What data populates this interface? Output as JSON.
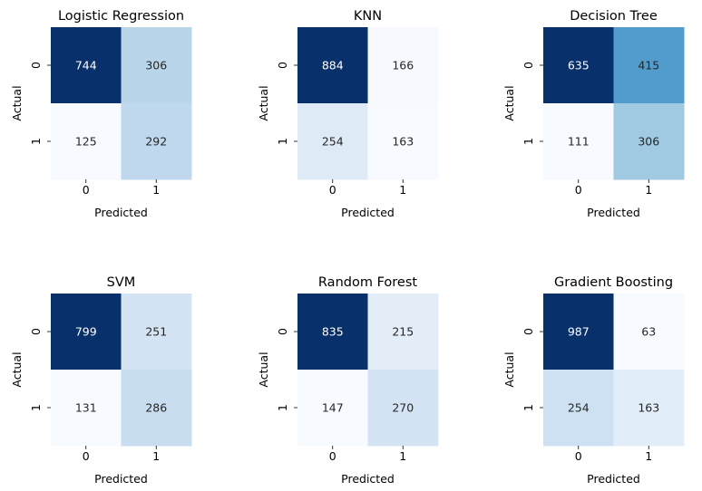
{
  "chart_data": [
    {
      "type": "heatmap",
      "title": "Logistic Regression",
      "xlabel": "Predicted",
      "ylabel": "Actual",
      "x_ticks": [
        "0",
        "1"
      ],
      "y_ticks": [
        "0",
        "1"
      ],
      "matrix": [
        [
          744,
          306
        ],
        [
          125,
          292
        ]
      ],
      "colormap": "Blues",
      "colorbar": false
    },
    {
      "type": "heatmap",
      "title": "KNN",
      "xlabel": "Predicted",
      "ylabel": "Actual",
      "x_ticks": [
        "0",
        "1"
      ],
      "y_ticks": [
        "0",
        "1"
      ],
      "matrix": [
        [
          884,
          166
        ],
        [
          254,
          163
        ]
      ],
      "colormap": "Blues",
      "colorbar": false
    },
    {
      "type": "heatmap",
      "title": "Decision Tree",
      "xlabel": "Predicted",
      "ylabel": "Actual",
      "x_ticks": [
        "0",
        "1"
      ],
      "y_ticks": [
        "0",
        "1"
      ],
      "matrix": [
        [
          635,
          415
        ],
        [
          111,
          306
        ]
      ],
      "colormap": "Blues",
      "colorbar": false
    },
    {
      "type": "heatmap",
      "title": "SVM",
      "xlabel": "Predicted",
      "ylabel": "Actual",
      "x_ticks": [
        "0",
        "1"
      ],
      "y_ticks": [
        "0",
        "1"
      ],
      "matrix": [
        [
          799,
          251
        ],
        [
          131,
          286
        ]
      ],
      "colormap": "Blues",
      "colorbar": false
    },
    {
      "type": "heatmap",
      "title": "Random Forest",
      "xlabel": "Predicted",
      "ylabel": "Actual",
      "x_ticks": [
        "0",
        "1"
      ],
      "y_ticks": [
        "0",
        "1"
      ],
      "matrix": [
        [
          835,
          215
        ],
        [
          147,
          270
        ]
      ],
      "colormap": "Blues",
      "colorbar": false
    },
    {
      "type": "heatmap",
      "title": "Gradient Boosting",
      "xlabel": "Predicted",
      "ylabel": "Actual",
      "x_ticks": [
        "0",
        "1"
      ],
      "y_ticks": [
        "0",
        "1"
      ],
      "matrix": [
        [
          987,
          63
        ],
        [
          254,
          163
        ]
      ],
      "colormap": "Blues",
      "colorbar": false
    }
  ],
  "colors": {
    "low": "#f7fbff",
    "high": "#08306b",
    "text_dark": "#262626",
    "text_light": "#ffffff"
  }
}
